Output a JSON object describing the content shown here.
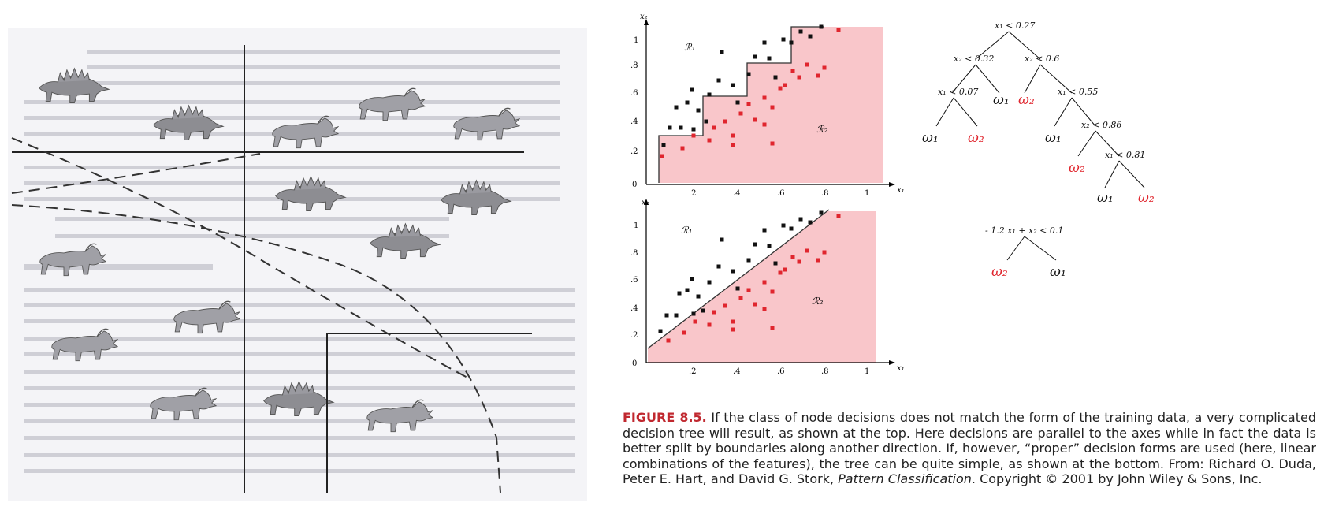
{
  "left_panel": {
    "description_layer": ""
  },
  "top_plot": {
    "y_axis_label": "x₂",
    "x_axis_label": "x₁",
    "y_ticks": [
      "0",
      ".2",
      ".4",
      ".6",
      ".8",
      "1"
    ],
    "x_ticks": [
      ".2",
      ".4",
      ".6",
      ".8",
      "1"
    ],
    "region_labels": {
      "r1": "ℛ₁",
      "r2": "ℛ₂"
    },
    "colors": {
      "region2": "#f9c6ca",
      "class1_points": "#111111",
      "class2_points": "#e0262e"
    }
  },
  "bottom_plot": {
    "y_axis_label": "x₂",
    "x_axis_label": "x₁",
    "y_ticks": [
      "0",
      ".2",
      ".4",
      ".6",
      ".8",
      "1"
    ],
    "x_ticks": [
      ".2",
      ".4",
      ".6",
      ".8",
      "1"
    ],
    "region_labels": {
      "r1": "ℛ₁",
      "r2": "ℛ₂"
    }
  },
  "top_tree": {
    "root": "x₁ < 0.27",
    "n_left": "x₂ < 0.32",
    "n_right": "x₂ < 0.6",
    "n_ll": "x₁ < 0.07",
    "leaf_ll_left": "ω₁",
    "leaf_ll_right": "ω₂",
    "leaf_l_right": "ω₁",
    "leaf_r_left": "ω₂",
    "n_rr": "x₁ < 0.55",
    "leaf_rr_left": "ω₁",
    "n_rrr": "x₂ < 0.86",
    "leaf_rrr_left": "ω₂",
    "n_rrrr": "x₁ < 0.81",
    "leaf_rrrr_left": "ω₁",
    "leaf_rrrr_right": "ω₂"
  },
  "bottom_tree": {
    "root": "- 1.2 x₁ + x₂ < 0.1",
    "leaf_left": "ω₂",
    "leaf_right": "ω₁"
  },
  "caption": {
    "figure_label": "FIGURE 8.5.",
    "text_1": " If the class of node decisions does not match the form of the training data, a very complicated decision tree will result, as shown at the top. Here decisions are parallel to the axes while in fact the data is better split by boundaries along another direction. If, however, “proper” decision forms are used (here, linear combinations of the features), the tree can be quite simple, as shown at the bottom. From: Richard O. Duda, Peter E. Hart, and David G. Stork, ",
    "book_title": "Pattern Classification",
    "text_2": ". Copyright © 2001 by John Wiley & Sons, Inc."
  }
}
